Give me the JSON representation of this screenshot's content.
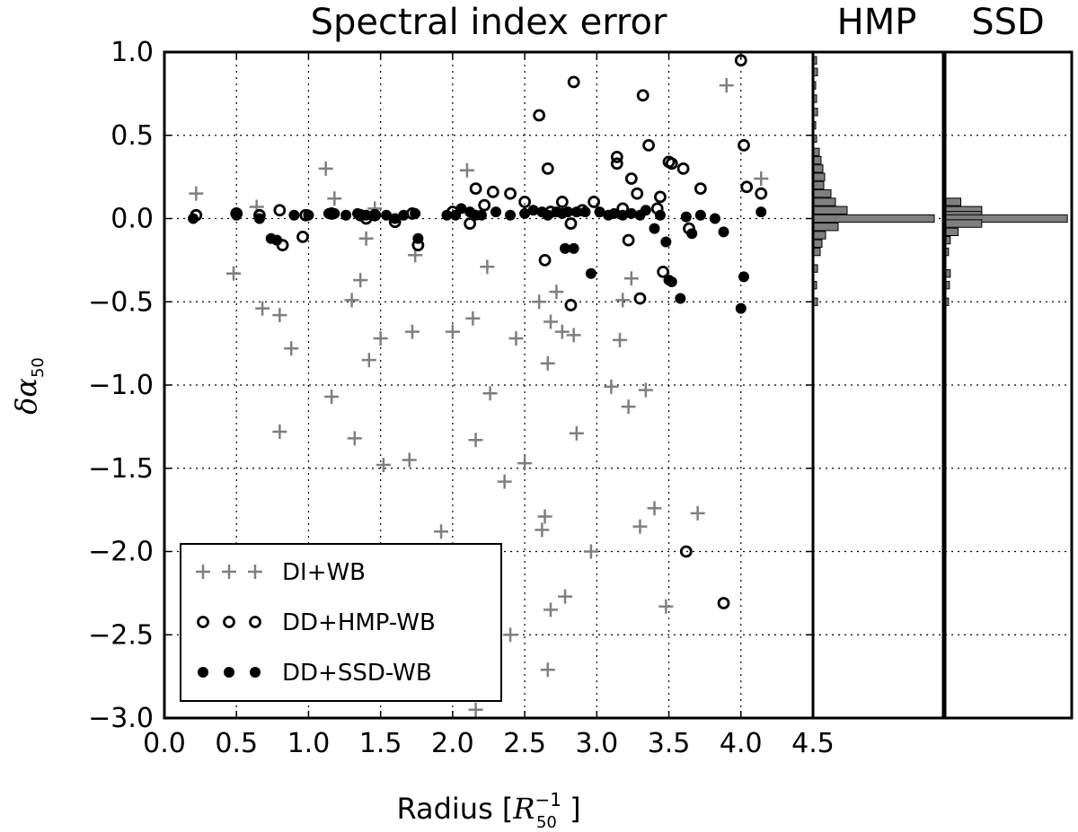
{
  "chart_data": {
    "type": "scatter",
    "title": "Spectral index error",
    "xlabel_text": "Radius [",
    "xlabel_math": "R",
    "xlabel_sup": "−1",
    "xlabel_sub": "50",
    "xlabel_end": " ]",
    "ylabel_math": "δα",
    "ylabel_sub": "50",
    "xlim": [
      0.0,
      4.5
    ],
    "ylim": [
      -3.0,
      1.0
    ],
    "x_ticks": [
      0.0,
      0.5,
      1.0,
      1.5,
      2.0,
      2.5,
      3.0,
      3.5,
      4.0,
      4.5
    ],
    "x_tick_labels": [
      "0.0",
      "0.5",
      "1.0",
      "1.5",
      "2.0",
      "2.5",
      "3.0",
      "3.5",
      "4.0",
      "4.5"
    ],
    "y_ticks": [
      1.0,
      0.5,
      0.0,
      -0.5,
      -1.0,
      -1.5,
      -2.0,
      -2.5,
      -3.0
    ],
    "y_tick_labels": [
      "1.0",
      "0.5",
      "0.0",
      "−0.5",
      "−1.0",
      "−1.5",
      "−2.0",
      "−2.5",
      "−3.0"
    ],
    "grid": true,
    "legend_position": "bottom-left",
    "series": [
      {
        "name": "DI+WB",
        "marker": "plus",
        "color": "#7f7f7f",
        "points": [
          [
            0.22,
            0.15
          ],
          [
            0.48,
            -0.33
          ],
          [
            0.64,
            0.07
          ],
          [
            0.68,
            -0.54
          ],
          [
            0.8,
            -0.58
          ],
          [
            0.8,
            -1.28
          ],
          [
            0.88,
            -0.78
          ],
          [
            1.12,
            0.3
          ],
          [
            1.16,
            -1.07
          ],
          [
            1.18,
            0.12
          ],
          [
            1.3,
            -0.49
          ],
          [
            1.32,
            -1.32
          ],
          [
            1.36,
            -0.37
          ],
          [
            1.4,
            -0.12
          ],
          [
            1.42,
            -0.85
          ],
          [
            1.46,
            0.06
          ],
          [
            1.5,
            -0.72
          ],
          [
            1.52,
            -1.48
          ],
          [
            1.7,
            -1.45
          ],
          [
            1.72,
            -0.68
          ],
          [
            1.74,
            -0.22
          ],
          [
            1.92,
            -1.88
          ],
          [
            2.0,
            -0.68
          ],
          [
            2.1,
            0.29
          ],
          [
            2.14,
            -0.6
          ],
          [
            2.16,
            -1.33
          ],
          [
            2.16,
            -2.95
          ],
          [
            2.24,
            -0.29
          ],
          [
            2.26,
            -1.05
          ],
          [
            2.36,
            -1.58
          ],
          [
            2.4,
            -2.5
          ],
          [
            2.44,
            -0.72
          ],
          [
            2.5,
            -1.47
          ],
          [
            2.6,
            -0.5
          ],
          [
            2.62,
            -1.87
          ],
          [
            2.64,
            -1.79
          ],
          [
            2.66,
            -2.71
          ],
          [
            2.66,
            -0.87
          ],
          [
            2.68,
            -0.62
          ],
          [
            2.68,
            -2.35
          ],
          [
            2.72,
            -0.44
          ],
          [
            2.76,
            -0.68
          ],
          [
            2.78,
            -2.27
          ],
          [
            2.84,
            -0.7
          ],
          [
            2.86,
            -1.29
          ],
          [
            2.96,
            -2.0
          ],
          [
            3.1,
            -1.01
          ],
          [
            3.16,
            -0.73
          ],
          [
            3.18,
            -0.49
          ],
          [
            3.22,
            -1.13
          ],
          [
            3.24,
            -0.36
          ],
          [
            3.3,
            -1.85
          ],
          [
            3.34,
            -1.03
          ],
          [
            3.4,
            -1.74
          ],
          [
            3.48,
            -2.33
          ],
          [
            3.7,
            -1.77
          ],
          [
            3.9,
            0.8
          ],
          [
            4.14,
            0.24
          ]
        ]
      },
      {
        "name": "DD+HMP-WB",
        "marker": "open-circle",
        "color": "#000000",
        "points": [
          [
            0.22,
            0.02
          ],
          [
            0.5,
            0.03
          ],
          [
            0.66,
            0.02
          ],
          [
            0.8,
            0.05
          ],
          [
            0.82,
            -0.16
          ],
          [
            0.96,
            -0.11
          ],
          [
            0.98,
            0.02
          ],
          [
            1.16,
            0.03
          ],
          [
            1.36,
            0.02
          ],
          [
            1.4,
            0.0
          ],
          [
            1.46,
            0.02
          ],
          [
            1.6,
            -0.02
          ],
          [
            1.72,
            0.03
          ],
          [
            1.76,
            -0.16
          ],
          [
            2.0,
            0.04
          ],
          [
            2.12,
            -0.03
          ],
          [
            2.16,
            0.18
          ],
          [
            2.22,
            0.08
          ],
          [
            2.28,
            0.16
          ],
          [
            2.4,
            0.15
          ],
          [
            2.5,
            0.1
          ],
          [
            2.6,
            0.62
          ],
          [
            2.64,
            -0.25
          ],
          [
            2.66,
            0.3
          ],
          [
            2.68,
            0.04
          ],
          [
            2.76,
            0.1
          ],
          [
            2.82,
            -0.52
          ],
          [
            2.82,
            -0.03
          ],
          [
            2.84,
            0.82
          ],
          [
            2.9,
            0.05
          ],
          [
            2.98,
            0.1
          ],
          [
            3.14,
            0.37
          ],
          [
            3.14,
            0.33
          ],
          [
            3.18,
            0.06
          ],
          [
            3.22,
            -0.13
          ],
          [
            3.24,
            0.24
          ],
          [
            3.28,
            0.15
          ],
          [
            3.3,
            -0.48
          ],
          [
            3.32,
            0.74
          ],
          [
            3.36,
            0.44
          ],
          [
            3.42,
            0.06
          ],
          [
            3.44,
            0.13
          ],
          [
            3.46,
            -0.32
          ],
          [
            3.5,
            0.34
          ],
          [
            3.52,
            0.33
          ],
          [
            3.6,
            0.3
          ],
          [
            3.62,
            -2.0
          ],
          [
            3.64,
            -0.06
          ],
          [
            3.72,
            0.18
          ],
          [
            3.88,
            -2.31
          ],
          [
            4.0,
            0.95
          ],
          [
            4.02,
            0.44
          ],
          [
            4.04,
            0.19
          ],
          [
            4.14,
            0.15
          ]
        ]
      },
      {
        "name": "DD+SSD-WB",
        "marker": "filled-circle",
        "color": "#000000",
        "points": [
          [
            0.2,
            0.0
          ],
          [
            0.5,
            0.02
          ],
          [
            0.66,
            0.0
          ],
          [
            0.74,
            -0.12
          ],
          [
            0.78,
            -0.13
          ],
          [
            0.9,
            0.02
          ],
          [
            1.0,
            0.02
          ],
          [
            1.14,
            0.03
          ],
          [
            1.18,
            0.03
          ],
          [
            1.26,
            0.02
          ],
          [
            1.34,
            0.03
          ],
          [
            1.4,
            0.02
          ],
          [
            1.46,
            0.02
          ],
          [
            1.54,
            0.02
          ],
          [
            1.6,
            0.0
          ],
          [
            1.66,
            0.02
          ],
          [
            1.74,
            0.03
          ],
          [
            1.76,
            -0.12
          ],
          [
            1.96,
            0.02
          ],
          [
            2.02,
            0.02
          ],
          [
            2.06,
            0.06
          ],
          [
            2.12,
            0.04
          ],
          [
            2.16,
            0.02
          ],
          [
            2.2,
            0.02
          ],
          [
            2.3,
            0.04
          ],
          [
            2.4,
            0.02
          ],
          [
            2.5,
            0.03
          ],
          [
            2.56,
            0.05
          ],
          [
            2.62,
            0.04
          ],
          [
            2.66,
            0.02
          ],
          [
            2.72,
            0.04
          ],
          [
            2.76,
            0.03
          ],
          [
            2.78,
            -0.18
          ],
          [
            2.8,
            0.04
          ],
          [
            2.84,
            -0.18
          ],
          [
            2.86,
            0.04
          ],
          [
            2.92,
            0.04
          ],
          [
            2.96,
            -0.33
          ],
          [
            3.02,
            0.04
          ],
          [
            3.08,
            0.02
          ],
          [
            3.12,
            0.03
          ],
          [
            3.18,
            0.02
          ],
          [
            3.24,
            0.03
          ],
          [
            3.3,
            0.02
          ],
          [
            3.34,
            0.05
          ],
          [
            3.4,
            -0.06
          ],
          [
            3.44,
            0.02
          ],
          [
            3.48,
            -0.14
          ],
          [
            3.5,
            -0.37
          ],
          [
            3.52,
            -0.38
          ],
          [
            3.58,
            -0.48
          ],
          [
            3.62,
            0.01
          ],
          [
            3.66,
            -0.09
          ],
          [
            3.72,
            0.02
          ],
          [
            3.82,
            0.0
          ],
          [
            3.88,
            -0.08
          ],
          [
            4.0,
            -0.54
          ],
          [
            4.02,
            -0.35
          ],
          [
            4.14,
            0.04
          ]
        ]
      }
    ],
    "histograms": [
      {
        "title": "HMP",
        "bar_color": "#7f7f7f",
        "bins": [
          [
            0.95,
            4
          ],
          [
            0.88,
            5
          ],
          [
            0.8,
            3
          ],
          [
            0.72,
            4
          ],
          [
            0.64,
            5
          ],
          [
            0.56,
            3
          ],
          [
            0.48,
            4
          ],
          [
            0.4,
            7
          ],
          [
            0.35,
            9
          ],
          [
            0.3,
            11
          ],
          [
            0.25,
            13
          ],
          [
            0.2,
            12
          ],
          [
            0.15,
            20
          ],
          [
            0.1,
            25
          ],
          [
            0.05,
            38
          ],
          [
            0.0,
            135
          ],
          [
            -0.05,
            28
          ],
          [
            -0.1,
            14
          ],
          [
            -0.15,
            10
          ],
          [
            -0.2,
            8
          ],
          [
            -0.3,
            5
          ],
          [
            -0.4,
            4
          ],
          [
            -0.5,
            5
          ]
        ]
      },
      {
        "title": "SSD",
        "bar_color": "#7f7f7f",
        "bins": [
          [
            0.1,
            18
          ],
          [
            0.05,
            42
          ],
          [
            0.02,
            42
          ],
          [
            0.0,
            140
          ],
          [
            -0.03,
            42
          ],
          [
            -0.08,
            15
          ],
          [
            -0.13,
            6
          ],
          [
            -0.2,
            4
          ],
          [
            -0.33,
            6
          ],
          [
            -0.4,
            5
          ],
          [
            -0.5,
            4
          ]
        ]
      }
    ]
  }
}
